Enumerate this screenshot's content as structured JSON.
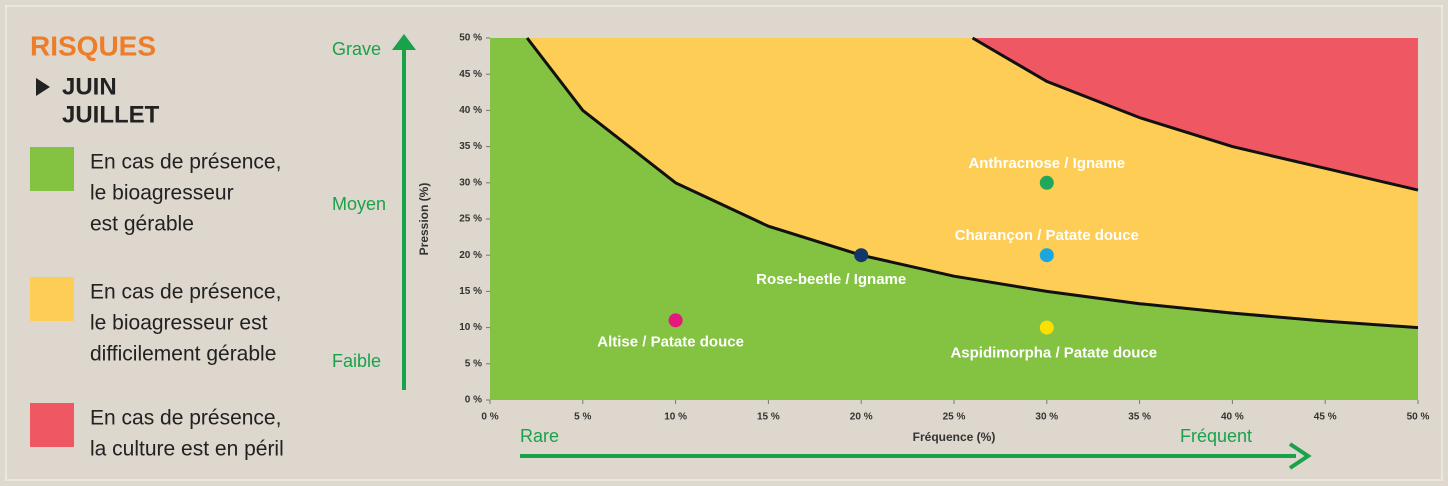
{
  "chart_data": {
    "type": "scatter",
    "title": "RISQUES",
    "subtitle": [
      "JUIN",
      "JUILLET"
    ],
    "legend": [
      {
        "lines": [
          "En cas de présence,",
          "le bioagresseur",
          "est gérable"
        ],
        "color": "#84c341"
      },
      {
        "lines": [
          "En cas de présence,",
          "le bioagresseur est",
          "difficilement gérable"
        ],
        "color": "#fdcd55"
      },
      {
        "lines": [
          "En cas de présence,",
          "la culture est en péril"
        ],
        "color": "#ef5763"
      }
    ],
    "xlabel": "Fréquence (%)",
    "ylabel": "Pression (%)",
    "y_annotations": [
      "Grave",
      "Moyen",
      "Faible"
    ],
    "x_annotations": [
      "Rare",
      "Fréquent"
    ],
    "xlim": [
      0,
      50
    ],
    "ylim": [
      0,
      50
    ],
    "xticks": [
      {
        "value": 0,
        "label": "0 %"
      },
      {
        "value": 5,
        "label": "5 %"
      },
      {
        "value": 10,
        "label": "10 %"
      },
      {
        "value": 15,
        "label": "15 %"
      },
      {
        "value": 20,
        "label": "20 %"
      },
      {
        "value": 25,
        "label": "25 %"
      },
      {
        "value": 30,
        "label": "30 %"
      },
      {
        "value": 35,
        "label": "35 %"
      },
      {
        "value": 40,
        "label": "40 %"
      },
      {
        "value": 45,
        "label": "45 %"
      },
      {
        "value": 50,
        "label": "50 %"
      }
    ],
    "yticks": [
      {
        "value": 0,
        "label": "0 %"
      },
      {
        "value": 5,
        "label": "5 %"
      },
      {
        "value": 10,
        "label": "10 %"
      },
      {
        "value": 15,
        "label": "15 %"
      },
      {
        "value": 20,
        "label": "20 %"
      },
      {
        "value": 25,
        "label": "25 %"
      },
      {
        "value": 30,
        "label": "30 %"
      },
      {
        "value": 35,
        "label": "35 %"
      },
      {
        "value": 40,
        "label": "40 %"
      },
      {
        "value": 45,
        "label": "45 %"
      },
      {
        "value": 50,
        "label": "50 %"
      }
    ],
    "zone_boundaries": [
      {
        "x": [
          2,
          5,
          10,
          15,
          20,
          25,
          30,
          35,
          40,
          45,
          50
        ],
        "y": [
          50,
          40,
          30,
          24,
          20,
          17.1,
          15,
          13.3,
          12,
          10.9,
          10
        ]
      },
      {
        "x": [
          26,
          30,
          35,
          40,
          45,
          50
        ],
        "y": [
          50,
          44,
          39,
          35,
          32,
          29
        ]
      }
    ],
    "series": [
      {
        "name": "Anthracnose / Igname",
        "color": "#1fa85a",
        "x": [
          30
        ],
        "values": [
          30
        ]
      },
      {
        "name": "Charançon / Patate douce",
        "color": "#1aa7e0",
        "x": [
          30
        ],
        "values": [
          20
        ]
      },
      {
        "name": "Rose-beetle / Igname",
        "color": "#12386b",
        "x": [
          20
        ],
        "values": [
          20
        ]
      },
      {
        "name": "Altise / Patate douce",
        "color": "#e6177d",
        "x": [
          10
        ],
        "values": [
          11
        ]
      },
      {
        "name": "Aspidimorpha / Patate douce",
        "color": "#fde001",
        "x": [
          30
        ],
        "values": [
          10
        ]
      }
    ]
  }
}
